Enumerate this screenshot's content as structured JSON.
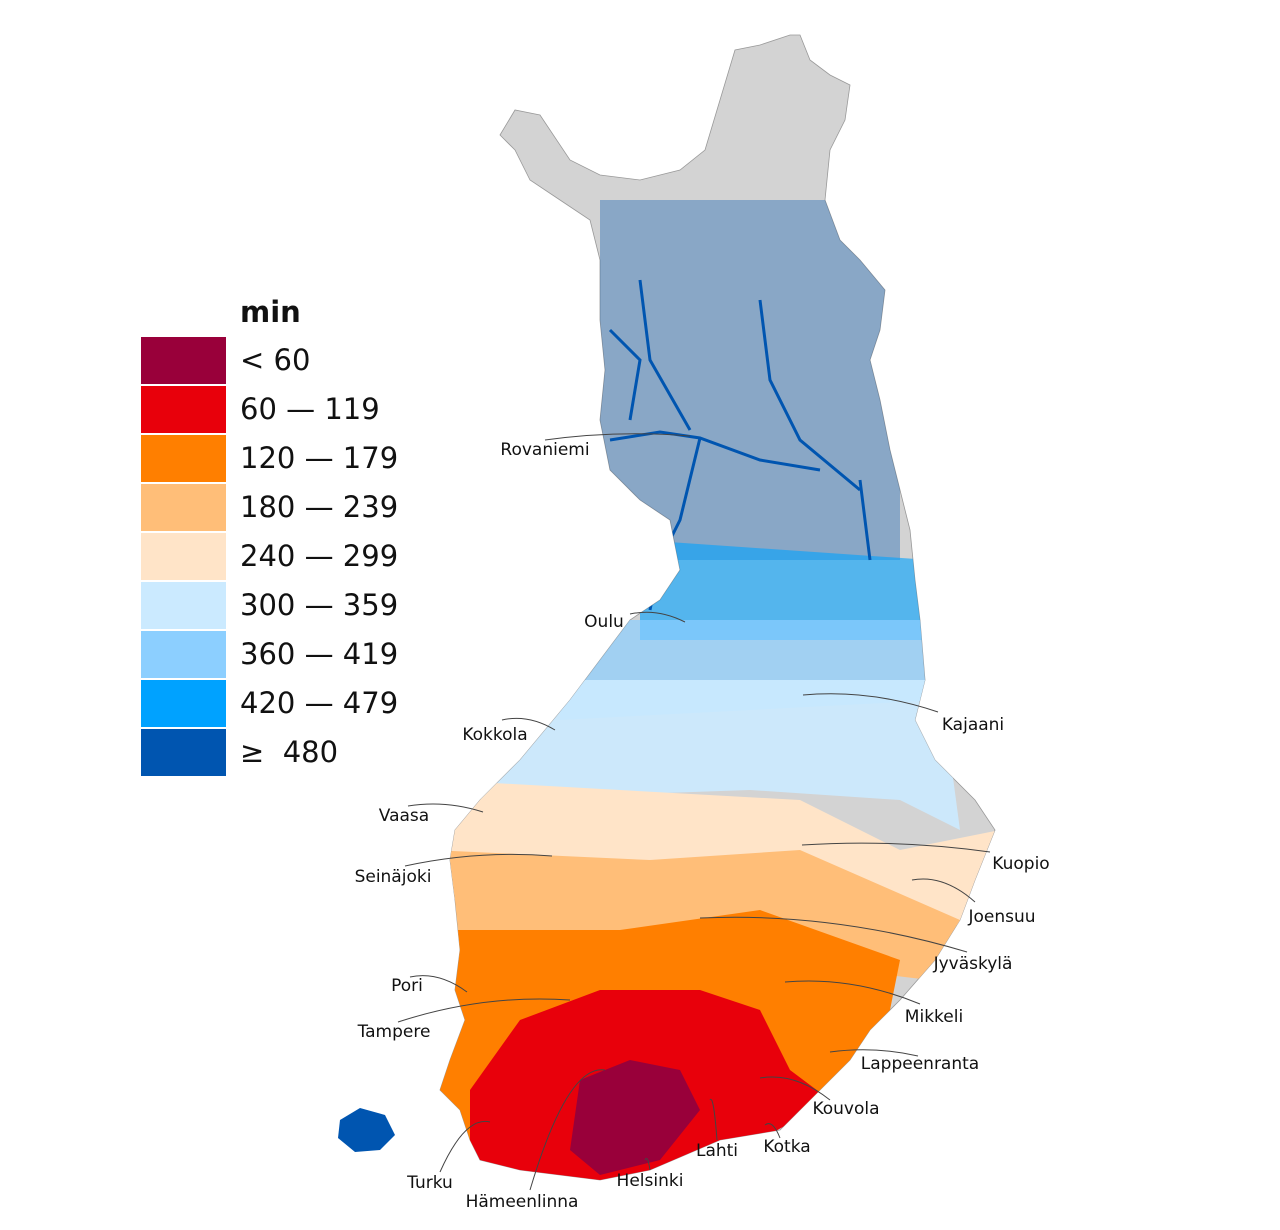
{
  "legend": {
    "title": "min",
    "items": [
      {
        "label": "< 60",
        "color": "#99003a"
      },
      {
        "label": "60 — 119",
        "color": "#e8000b"
      },
      {
        "label": "120 — 179",
        "color": "#ff7f00"
      },
      {
        "label": "180 — 239",
        "color": "#ffbe78"
      },
      {
        "label": "240 — 299",
        "color": "#ffe4c8"
      },
      {
        "label": "300 — 359",
        "color": "#cbeaff"
      },
      {
        "label": "360 — 419",
        "color": "#8ccfff"
      },
      {
        "label": "420 — 479",
        "color": "#00a2ff"
      },
      {
        "label": "≥  480",
        "color": "#0055b0"
      }
    ]
  },
  "cities": [
    "Rovaniemi",
    "Oulu",
    "Kokkola",
    "Vaasa",
    "Seinäjoki",
    "Pori",
    "Tampere",
    "Turku",
    "Hämeenlinna",
    "Helsinki",
    "Lahti",
    "Kotka",
    "Kouvola",
    "Lappeenranta",
    "Mikkeli",
    "Jyväskylä",
    "Joensuu",
    "Kuopio",
    "Kajaani"
  ]
}
